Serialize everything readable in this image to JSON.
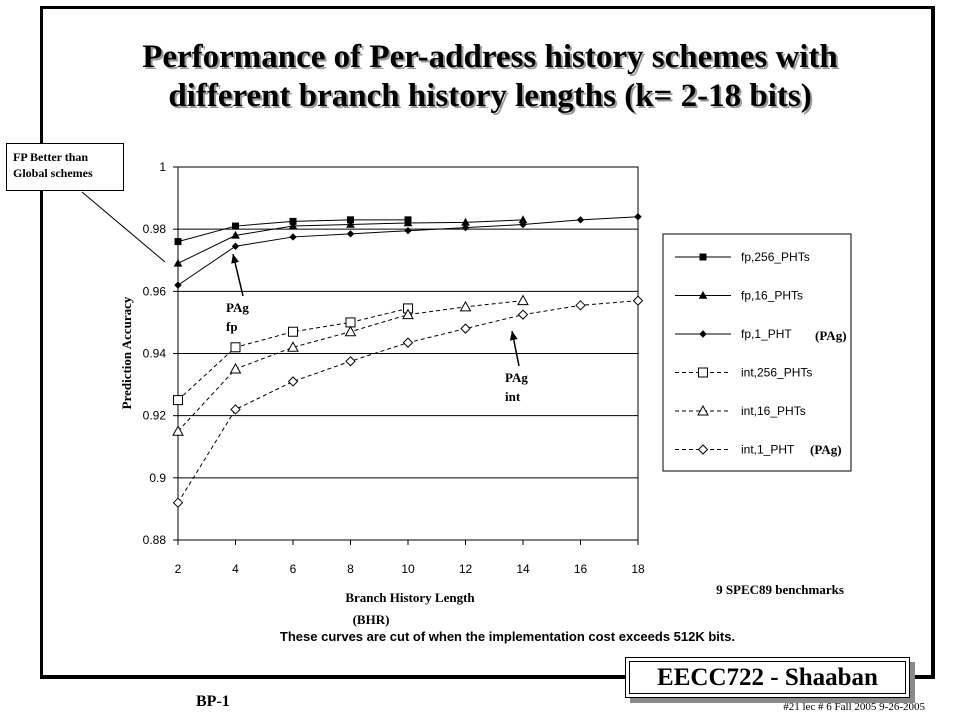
{
  "slide": {
    "title_line1": "Performance of Per-address history schemes with",
    "title_line2": "different branch history lengths (k= 2-18 bits)",
    "callout_line1": "FP Better than",
    "callout_line2": "Global schemes",
    "note": "These curves are cut of when the implementation cost exceeds 512K bits.",
    "benchmarks": "9 SPEC89 benchmarks",
    "badge": "EECC722 - Shaaban",
    "slide_ref": "BP-1",
    "lecture_info": "#21   lec # 6   Fall 2005   9-26-2005"
  },
  "annotations": {
    "pag_fp": [
      "PAg",
      "fp"
    ],
    "pag_int": [
      "PAg",
      "int"
    ],
    "legend_pag_1": "(PAg)",
    "legend_pag_2": "(PAg)"
  },
  "chart_data": {
    "type": "line",
    "xlabel": "Branch History Length",
    "xlabel_sub": "(BHR)",
    "ylabel": "Prediction Accuracy",
    "x_ticks": [
      2,
      4,
      6,
      8,
      10,
      12,
      14,
      16,
      18
    ],
    "y_ticks": [
      "0.88",
      "0.9",
      "0.92",
      "0.94",
      "0.96",
      "0.98",
      "1"
    ],
    "xlim": [
      2,
      18
    ],
    "ylim": [
      0.88,
      1.0
    ],
    "grid": "horizontal",
    "legend_position": "right",
    "series": [
      {
        "name": "fp,256_PHTs",
        "x": [
          2,
          4,
          6,
          8,
          10
        ],
        "y": [
          0.976,
          0.981,
          0.9825,
          0.983,
          0.983
        ],
        "marker": "square-filled",
        "dash": "solid"
      },
      {
        "name": "fp,16_PHTs",
        "x": [
          2,
          4,
          6,
          8,
          10,
          12,
          14
        ],
        "y": [
          0.969,
          0.978,
          0.981,
          0.9815,
          0.982,
          0.9822,
          0.983
        ],
        "marker": "triangle-filled",
        "dash": "solid"
      },
      {
        "name": "fp,1_PHT",
        "x": [
          2,
          4,
          6,
          8,
          10,
          12,
          14,
          16,
          18
        ],
        "y": [
          0.962,
          0.9745,
          0.9775,
          0.9785,
          0.9795,
          0.9805,
          0.9815,
          0.983,
          0.984
        ],
        "marker": "diamond-filled",
        "dash": "solid"
      },
      {
        "name": "int,256_PHTs",
        "x": [
          2,
          4,
          6,
          8,
          10
        ],
        "y": [
          0.925,
          0.942,
          0.947,
          0.95,
          0.9545
        ],
        "marker": "square-open",
        "dash": "dashed"
      },
      {
        "name": "int,16_PHTs",
        "x": [
          2,
          4,
          6,
          8,
          10,
          12,
          14
        ],
        "y": [
          0.915,
          0.935,
          0.942,
          0.947,
          0.9525,
          0.955,
          0.957
        ],
        "marker": "triangle-open",
        "dash": "dashed"
      },
      {
        "name": "int,1_PHT",
        "x": [
          2,
          4,
          6,
          8,
          10,
          12,
          14,
          16,
          18
        ],
        "y": [
          0.892,
          0.922,
          0.931,
          0.9375,
          0.9435,
          0.948,
          0.9525,
          0.9555,
          0.957
        ],
        "marker": "diamond-open",
        "dash": "dashed"
      }
    ]
  }
}
